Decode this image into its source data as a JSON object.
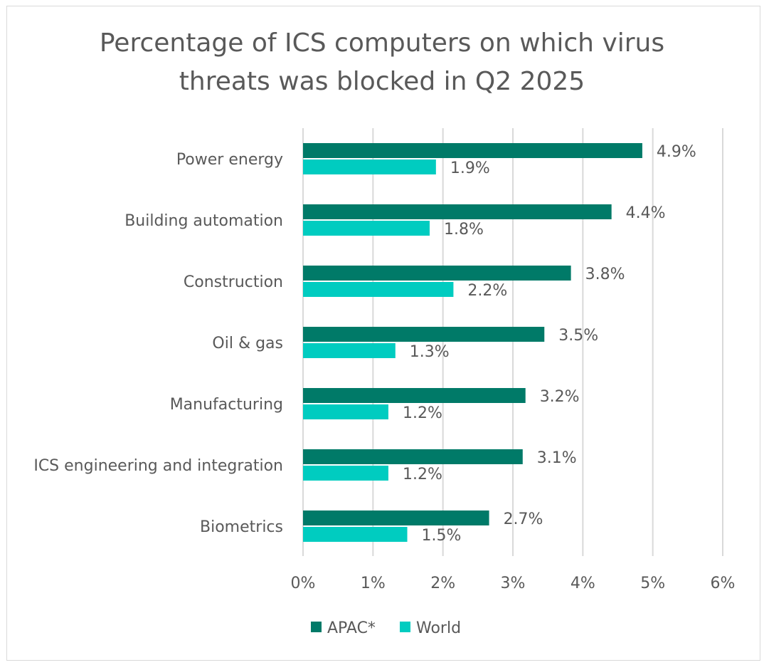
{
  "chart_data": {
    "type": "bar",
    "orientation": "horizontal",
    "title_lines": [
      "Percentage of ICS computers on which virus",
      "threats was blocked in Q2 2025"
    ],
    "categories": [
      "Power energy",
      "Building automation",
      "Construction",
      "Oil & gas",
      "Manufacturing",
      "ICS engineering and integration",
      "Biometrics"
    ],
    "series": [
      {
        "name": "APAC*",
        "color": "#007a68",
        "values": [
          4.85,
          4.41,
          3.83,
          3.45,
          3.18,
          3.14,
          2.66
        ],
        "labels": [
          "4.9%",
          "4.4%",
          "3.8%",
          "3.5%",
          "3.2%",
          "3.1%",
          "2.7%"
        ]
      },
      {
        "name": "World",
        "color": "#00ccc0",
        "values": [
          1.9,
          1.81,
          2.15,
          1.32,
          1.22,
          1.22,
          1.49
        ],
        "labels": [
          "1.9%",
          "1.8%",
          "2.2%",
          "1.3%",
          "1.2%",
          "1.2%",
          "1.5%"
        ]
      }
    ],
    "xlim": [
      0,
      6
    ],
    "xticks": [
      0,
      1,
      2,
      3,
      4,
      5,
      6
    ],
    "xtick_labels": [
      "0%",
      "1%",
      "2%",
      "3%",
      "4%",
      "5%",
      "6%"
    ],
    "grid": "vertical",
    "legend_position": "bottom"
  }
}
